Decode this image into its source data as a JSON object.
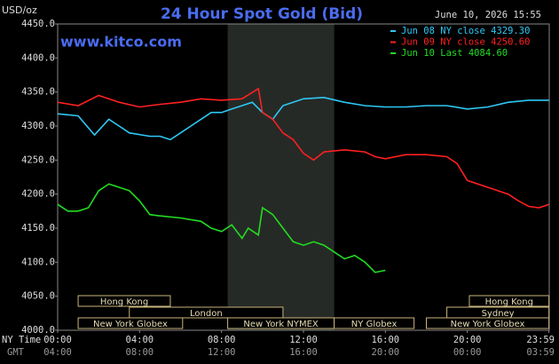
{
  "chart_data": {
    "type": "line",
    "title": "24 Hour Spot Gold (Bid)",
    "unit": "USD/oz",
    "timestamp": "June 10, 2026 15:55",
    "website": "www.kitco.com",
    "x_row_label": "NY Time",
    "x2_row_label": "GMT",
    "xlim": [
      0,
      24
    ],
    "xticks": [
      {
        "value": 0,
        "label": "00:00"
      },
      {
        "value": 4,
        "label": "04:00"
      },
      {
        "value": 8,
        "label": "08:00"
      },
      {
        "value": 12,
        "label": "12:00"
      },
      {
        "value": 16,
        "label": "16:00"
      },
      {
        "value": 20,
        "label": "20:00"
      },
      {
        "value": 23.983,
        "label": "23:59"
      }
    ],
    "xticks_gmt": [
      "04:00",
      "08:00",
      "12:00",
      "16:00",
      "20:00",
      "00:00",
      "03:59"
    ],
    "ylim": [
      4000,
      4450
    ],
    "yticks": [
      {
        "value": 4000,
        "label": "4000.0"
      },
      {
        "value": 4050,
        "label": "4050.0"
      },
      {
        "value": 4100,
        "label": "4100.0"
      },
      {
        "value": 4150,
        "label": "4150.0"
      },
      {
        "value": 4200,
        "label": "4200.0"
      },
      {
        "value": 4250,
        "label": "4250.0"
      },
      {
        "value": 4300,
        "label": "4300.0"
      },
      {
        "value": 4350,
        "label": "4350.0"
      },
      {
        "value": 4400,
        "label": "4400.0"
      },
      {
        "value": 4450,
        "label": "4450.0"
      }
    ],
    "grid": false,
    "legend": "top-right",
    "series": [
      {
        "name": "Jun 08 NY close 4329.30",
        "color": "#2ec8f5",
        "x": [
          0,
          1,
          1.8,
          2.5,
          3,
          3.5,
          4.5,
          5,
          5.5,
          6,
          6.5,
          7,
          7.5,
          8,
          8.5,
          9,
          9.5,
          10,
          10.5,
          11,
          12,
          13,
          14,
          15,
          16,
          17,
          18,
          19,
          20,
          21,
          22,
          23,
          23.983
        ],
        "values": [
          4318,
          4315,
          4287,
          4310,
          4300,
          4290,
          4285,
          4285,
          4280,
          4290,
          4300,
          4310,
          4320,
          4320,
          4325,
          4330,
          4335,
          4320,
          4310,
          4330,
          4340,
          4342,
          4335,
          4330,
          4328,
          4328,
          4330,
          4330,
          4325,
          4328,
          4335,
          4338,
          4338
        ]
      },
      {
        "name": "Jun 09 NY close 4250.60",
        "color": "#ff2020",
        "x": [
          0,
          1,
          2,
          3,
          4,
          5,
          6,
          7,
          8,
          9,
          9.8,
          10,
          10.5,
          11,
          11.5,
          12,
          12.5,
          13,
          14,
          15,
          15.5,
          16,
          17,
          18,
          19,
          19.5,
          20,
          21,
          22,
          22.5,
          23,
          23.5,
          23.983
        ],
        "values": [
          4335,
          4330,
          4345,
          4335,
          4328,
          4332,
          4335,
          4340,
          4338,
          4340,
          4355,
          4320,
          4310,
          4290,
          4280,
          4260,
          4250,
          4262,
          4265,
          4262,
          4255,
          4252,
          4258,
          4258,
          4255,
          4245,
          4220,
          4210,
          4200,
          4190,
          4182,
          4180,
          4185
        ]
      },
      {
        "name": "Jun 10 Last 4084.60",
        "color": "#22dd22",
        "x": [
          0,
          0.5,
          1,
          1.5,
          2,
          2.5,
          3,
          3.5,
          4,
          4.5,
          5,
          6,
          7,
          7.5,
          8,
          8.5,
          9,
          9.3,
          9.8,
          10,
          10.5,
          11,
          11.5,
          12,
          12.5,
          13,
          13.5,
          14,
          14.5,
          15,
          15.5,
          16
        ],
        "values": [
          4185,
          4175,
          4175,
          4180,
          4205,
          4215,
          4210,
          4205,
          4190,
          4170,
          4168,
          4165,
          4160,
          4150,
          4145,
          4155,
          4135,
          4150,
          4140,
          4180,
          4170,
          4150,
          4130,
          4125,
          4130,
          4125,
          4115,
          4105,
          4110,
          4100,
          4085,
          4088
        ]
      }
    ],
    "sessions": [
      [
        {
          "label": "Hong Kong",
          "start": 1,
          "end": 5.5
        },
        {
          "label": "Hong Kong",
          "start": 20.1,
          "end": 23.983
        }
      ],
      [
        {
          "label": "London",
          "start": 3.5,
          "end": 11
        },
        {
          "label": "Sydney",
          "start": 19,
          "end": 23.983
        }
      ],
      [
        {
          "label": "New York Globex",
          "start": 1,
          "end": 6.1
        },
        {
          "label": "New York NYMEX",
          "start": 8.3,
          "end": 13.5,
          "shaded": true
        },
        {
          "label": "NY Globex",
          "start": 13.5,
          "end": 17.4
        },
        {
          "label": "New York Globex",
          "start": 18,
          "end": 23.983
        }
      ]
    ]
  }
}
